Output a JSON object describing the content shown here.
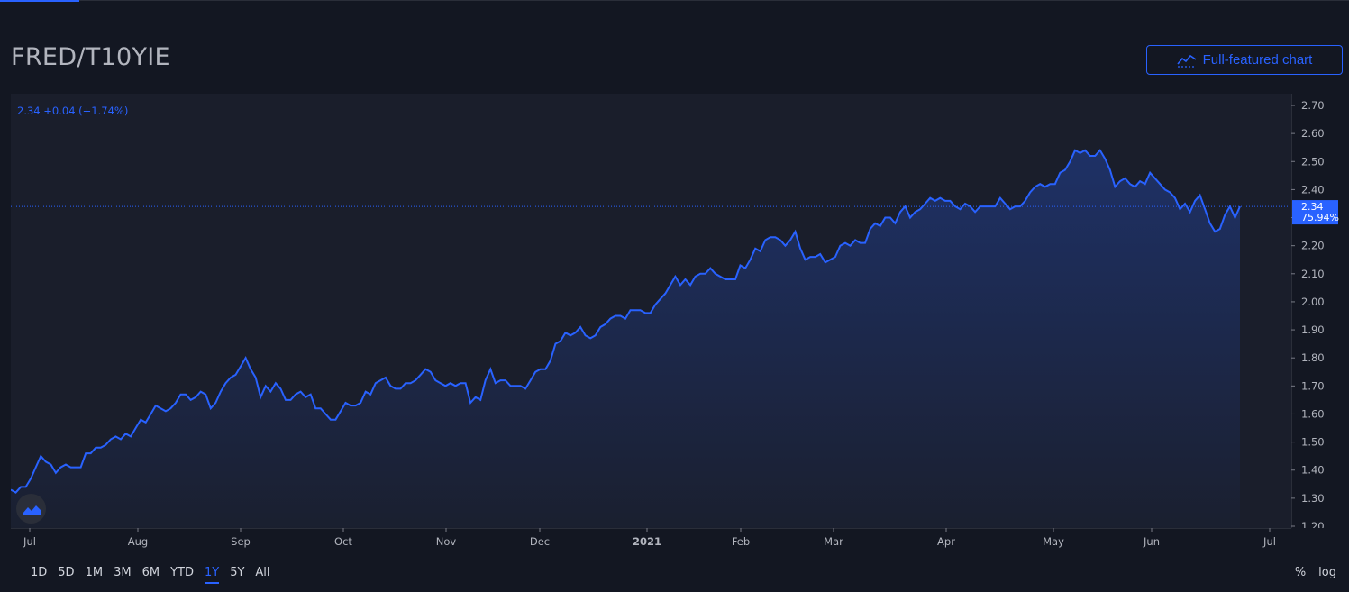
{
  "header": {
    "symbol": "FRED/T10YIE",
    "full_chart_label": "Full-featured chart"
  },
  "legend": {
    "value": "2.34",
    "change": "+0.04",
    "change_pct": "(+1.74%)"
  },
  "last_price": {
    "value": "2.34",
    "pct": "75.94%"
  },
  "range_buttons": [
    "1D",
    "5D",
    "1M",
    "3M",
    "6M",
    "YTD",
    "1Y",
    "5Y",
    "All"
  ],
  "active_range": "1Y",
  "scale_options": {
    "percent": "%",
    "log": "log"
  },
  "colors": {
    "background": "#131722",
    "line": "#2962ff",
    "text": "#d1d4dc",
    "axis_text": "#b2b5be"
  },
  "chart_data": {
    "type": "area",
    "title": "FRED/T10YIE",
    "ylim": [
      1.2,
      2.7
    ],
    "y_ticks": [
      1.2,
      1.3,
      1.4,
      1.5,
      1.6,
      1.7,
      1.8,
      1.9,
      2.0,
      2.1,
      2.2,
      2.3,
      2.4,
      2.5,
      2.6,
      2.7
    ],
    "x_ticks": [
      "Jul",
      "Aug",
      "Sep",
      "Oct",
      "Nov",
      "Dec",
      "2021",
      "Feb",
      "Mar",
      "Apr",
      "May",
      "Jun",
      "Jul"
    ],
    "grid": false,
    "series": [
      {
        "values": [
          1.33,
          1.32,
          1.34,
          1.34,
          1.37,
          1.41,
          1.45,
          1.43,
          1.42,
          1.39,
          1.41,
          1.42,
          1.41,
          1.41,
          1.41,
          1.46,
          1.46,
          1.48,
          1.48,
          1.49,
          1.51,
          1.52,
          1.51,
          1.53,
          1.52,
          1.55,
          1.58,
          1.57,
          1.6,
          1.63,
          1.62,
          1.61,
          1.62,
          1.64,
          1.67,
          1.67,
          1.65,
          1.66,
          1.68,
          1.67,
          1.62,
          1.64,
          1.68,
          1.71,
          1.73,
          1.74,
          1.77,
          1.8,
          1.76,
          1.73,
          1.66,
          1.7,
          1.68,
          1.71,
          1.69,
          1.65,
          1.65,
          1.67,
          1.68,
          1.66,
          1.67,
          1.62,
          1.62,
          1.6,
          1.58,
          1.58,
          1.61,
          1.64,
          1.63,
          1.63,
          1.64,
          1.68,
          1.67,
          1.71,
          1.72,
          1.73,
          1.7,
          1.69,
          1.69,
          1.71,
          1.71,
          1.72,
          1.74,
          1.76,
          1.75,
          1.72,
          1.71,
          1.7,
          1.71,
          1.7,
          1.71,
          1.71,
          1.64,
          1.66,
          1.65,
          1.72,
          1.76,
          1.71,
          1.72,
          1.72,
          1.7,
          1.7,
          1.7,
          1.69,
          1.72,
          1.75,
          1.76,
          1.76,
          1.79,
          1.85,
          1.86,
          1.89,
          1.88,
          1.89,
          1.91,
          1.88,
          1.87,
          1.88,
          1.91,
          1.92,
          1.94,
          1.95,
          1.95,
          1.94,
          1.97,
          1.97,
          1.97,
          1.96,
          1.96,
          1.99,
          2.01,
          2.03,
          2.06,
          2.09,
          2.06,
          2.08,
          2.06,
          2.09,
          2.1,
          2.1,
          2.12,
          2.1,
          2.09,
          2.08,
          2.08,
          2.08,
          2.13,
          2.12,
          2.15,
          2.19,
          2.18,
          2.22,
          2.23,
          2.23,
          2.22,
          2.2,
          2.22,
          2.25,
          2.19,
          2.15,
          2.16,
          2.16,
          2.17,
          2.14,
          2.15,
          2.16,
          2.2,
          2.21,
          2.2,
          2.22,
          2.21,
          2.21,
          2.26,
          2.28,
          2.27,
          2.3,
          2.3,
          2.28,
          2.32,
          2.34,
          2.3,
          2.32,
          2.33,
          2.35,
          2.37,
          2.36,
          2.37,
          2.36,
          2.36,
          2.34,
          2.33,
          2.35,
          2.34,
          2.32,
          2.34,
          2.34,
          2.34,
          2.34,
          2.37,
          2.35,
          2.33,
          2.34,
          2.34,
          2.36,
          2.39,
          2.41,
          2.42,
          2.41,
          2.42,
          2.42,
          2.46,
          2.47,
          2.5,
          2.54,
          2.53,
          2.54,
          2.52,
          2.52,
          2.54,
          2.51,
          2.47,
          2.41,
          2.43,
          2.44,
          2.42,
          2.41,
          2.43,
          2.42,
          2.46,
          2.44,
          2.42,
          2.4,
          2.39,
          2.37,
          2.33,
          2.35,
          2.32,
          2.36,
          2.38,
          2.33,
          2.28,
          2.25,
          2.26,
          2.31,
          2.34,
          2.3,
          2.34
        ]
      }
    ]
  }
}
